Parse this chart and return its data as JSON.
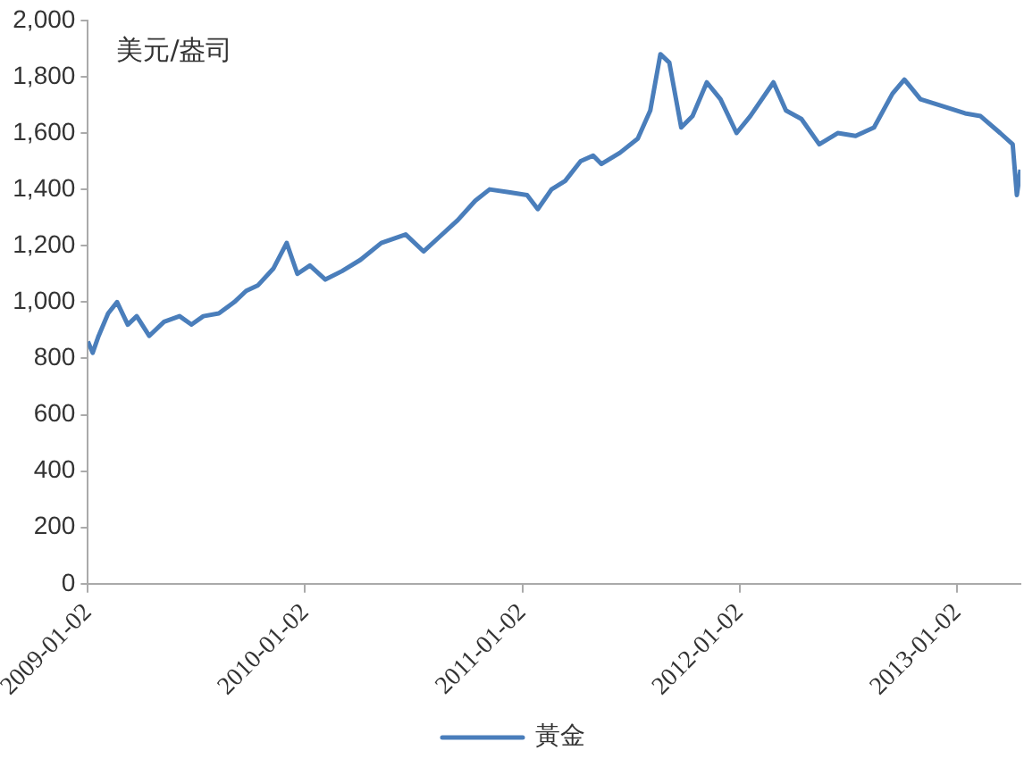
{
  "chart_data": {
    "type": "line",
    "ylabel": "美元/盎司",
    "xlim": [
      "2009-01-02",
      "2013-04-18"
    ],
    "ylim": [
      0,
      2000
    ],
    "xticks": [
      "2009-01-02",
      "2010-01-02",
      "2011-01-02",
      "2012-01-02",
      "2013-01-02"
    ],
    "yticks": [
      0,
      200,
      400,
      600,
      800,
      {
        "value": 1000,
        "label": "1,000"
      },
      {
        "value": 1200,
        "label": "1,200"
      },
      {
        "value": 1400,
        "label": "1,400"
      },
      {
        "value": 1600,
        "label": "1,600"
      },
      {
        "value": 1800,
        "label": "1,800"
      },
      {
        "value": 2000,
        "label": "2,000"
      }
    ],
    "grid": false,
    "legend": "bottom",
    "marker": "none",
    "line_style": "solid",
    "x": [
      "2009-01-02",
      "2009-01-10",
      "2009-01-20",
      "2009-02-05",
      "2009-02-20",
      "2009-03-10",
      "2009-03-25",
      "2009-04-15",
      "2009-05-10",
      "2009-06-05",
      "2009-06-25",
      "2009-07-15",
      "2009-08-10",
      "2009-09-05",
      "2009-09-25",
      "2009-10-15",
      "2009-11-10",
      "2009-12-02",
      "2009-12-20",
      "2010-01-10",
      "2010-02-05",
      "2010-03-05",
      "2010-04-05",
      "2010-05-10",
      "2010-06-20",
      "2010-07-20",
      "2010-08-15",
      "2010-09-15",
      "2010-10-15",
      "2010-11-08",
      "2010-12-10",
      "2011-01-10",
      "2011-01-28",
      "2011-02-20",
      "2011-03-15",
      "2011-04-10",
      "2011-05-01",
      "2011-05-15",
      "2011-06-15",
      "2011-07-15",
      "2011-08-05",
      "2011-08-22",
      "2011-09-06",
      "2011-09-26",
      "2011-10-15",
      "2011-11-08",
      "2011-12-01",
      "2011-12-28",
      "2012-01-20",
      "2012-02-28",
      "2012-03-20",
      "2012-04-15",
      "2012-05-15",
      "2012-06-15",
      "2012-07-15",
      "2012-08-15",
      "2012-09-15",
      "2012-10-05",
      "2012-11-01",
      "2012-12-01",
      "2013-01-15",
      "2013-02-10",
      "2013-03-15",
      "2013-04-05",
      "2013-04-12",
      "2013-04-18"
    ],
    "series": [
      {
        "name": "黃金",
        "color": "#4a7ebb",
        "values": [
          860,
          820,
          880,
          960,
          1000,
          920,
          950,
          880,
          930,
          950,
          920,
          950,
          960,
          1000,
          1040,
          1060,
          1120,
          1210,
          1100,
          1130,
          1080,
          1110,
          1150,
          1210,
          1240,
          1180,
          1230,
          1290,
          1360,
          1400,
          1390,
          1380,
          1330,
          1400,
          1430,
          1500,
          1520,
          1490,
          1530,
          1580,
          1680,
          1880,
          1850,
          1620,
          1660,
          1780,
          1720,
          1600,
          1660,
          1780,
          1680,
          1650,
          1560,
          1600,
          1590,
          1620,
          1740,
          1790,
          1720,
          1700,
          1670,
          1660,
          1600,
          1560,
          1380,
          1470
        ]
      }
    ]
  }
}
